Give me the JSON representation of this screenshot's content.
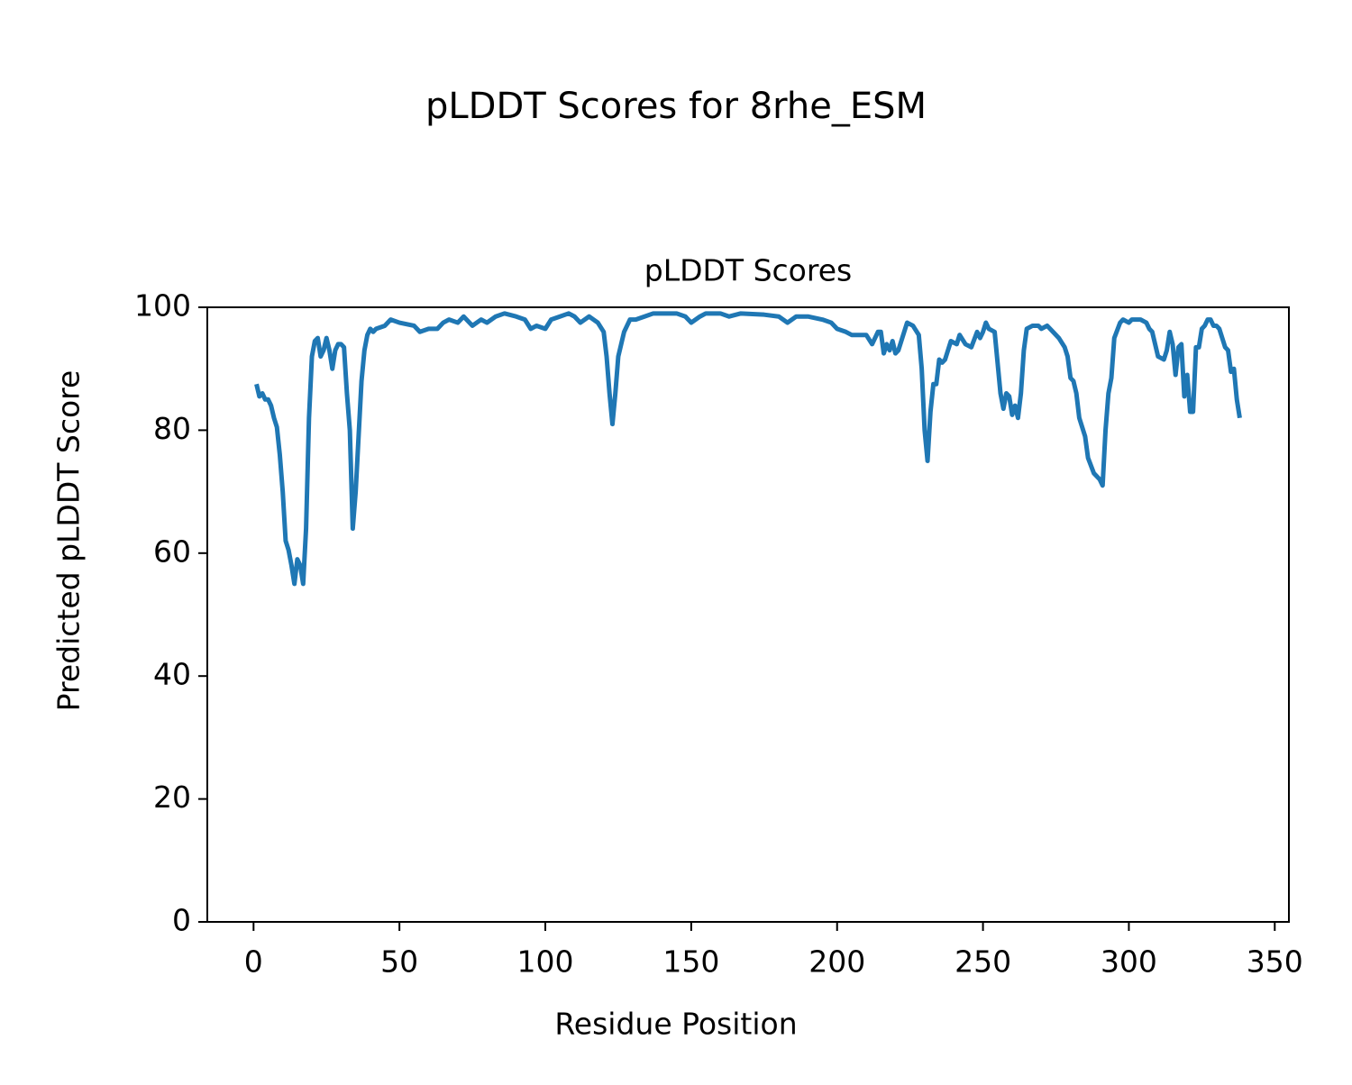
{
  "chart_data": {
    "type": "line",
    "suptitle": "pLDDT Scores for 8rhe_ESM",
    "title": "pLDDT Scores",
    "xlabel": "Residue Position",
    "ylabel": "Predicted pLDDT Score",
    "xlim": [
      -15.85,
      354.85
    ],
    "ylim": [
      0,
      100
    ],
    "xticks": [
      0,
      50,
      100,
      150,
      200,
      250,
      300,
      350
    ],
    "yticks": [
      0,
      20,
      40,
      60,
      80,
      100
    ],
    "series": [
      {
        "name": "pLDDT",
        "color": "#1f77b4",
        "x": [
          1,
          2,
          3,
          4,
          5,
          6,
          7,
          8,
          9,
          10,
          11,
          12,
          13,
          14,
          15,
          16,
          17,
          18,
          19,
          20,
          21,
          22,
          23,
          24,
          25,
          26,
          27,
          28,
          29,
          30,
          31,
          32,
          33,
          34,
          35,
          36,
          37,
          38,
          39,
          40,
          41,
          42,
          45,
          47,
          50,
          55,
          57,
          60,
          63,
          65,
          67,
          70,
          72,
          75,
          78,
          80,
          83,
          86,
          90,
          93,
          95,
          97,
          100,
          102,
          105,
          108,
          110,
          112,
          115,
          118,
          120,
          121,
          122,
          123,
          124,
          125,
          127,
          129,
          131,
          134,
          137,
          140,
          145,
          148,
          150,
          153,
          155,
          160,
          163,
          167,
          175,
          180,
          183,
          186,
          190,
          195,
          198,
          200,
          203,
          205,
          207,
          210,
          212,
          214,
          215,
          216,
          217,
          218,
          219,
          220,
          221,
          223,
          224,
          226,
          228,
          229,
          230,
          231,
          232,
          233,
          234,
          235,
          236,
          237,
          239,
          241,
          242,
          244,
          246,
          248,
          249,
          250,
          251,
          252,
          254,
          255,
          256,
          257,
          258,
          259,
          260,
          261,
          262,
          263,
          264,
          265,
          267,
          269,
          270,
          272,
          274,
          276,
          278,
          279,
          280,
          281,
          282,
          283,
          285,
          286,
          288,
          290,
          291,
          292,
          293,
          294,
          295,
          297,
          298,
          300,
          301,
          304,
          306,
          307,
          308,
          310,
          312,
          313,
          314,
          315,
          316,
          317,
          318,
          319,
          320,
          321,
          322,
          323,
          324,
          325,
          326,
          327,
          328,
          329,
          330,
          331,
          332,
          333,
          334,
          335,
          336,
          337,
          338
        ],
        "values": [
          87.5,
          85.5,
          86,
          85,
          85,
          84,
          82,
          80.5,
          76,
          70,
          62,
          60.5,
          58,
          55,
          59,
          58,
          55,
          64,
          82,
          92,
          94.5,
          95,
          92,
          93,
          95,
          93,
          90,
          93,
          94,
          94,
          93.5,
          86,
          80,
          64,
          70,
          79,
          88,
          93,
          95.5,
          96.5,
          96,
          96.5,
          97,
          98,
          97.5,
          97,
          96,
          96.5,
          96.5,
          97.5,
          98,
          97.5,
          98.5,
          97,
          98,
          97.5,
          98.5,
          99,
          98.5,
          98,
          96.5,
          97,
          96.5,
          98,
          98.5,
          99,
          98.5,
          97.5,
          98.5,
          97.5,
          96,
          92,
          86,
          81,
          86,
          92,
          96,
          98,
          98,
          98.5,
          99,
          99,
          99,
          98.5,
          97.5,
          98.5,
          99,
          99,
          98.5,
          99,
          98.8,
          98.5,
          97.5,
          98.5,
          98.5,
          98,
          97.5,
          96.5,
          96,
          95.5,
          95.5,
          95.5,
          94,
          96,
          96,
          92.5,
          94,
          93,
          94.5,
          92.5,
          93,
          96,
          97.5,
          97,
          95.5,
          90,
          80,
          75,
          83,
          87.5,
          87.5,
          91.5,
          91,
          91.5,
          94.5,
          94,
          95.5,
          94,
          93.5,
          96,
          95,
          96,
          97.5,
          96.5,
          96,
          91,
          86,
          83.5,
          86,
          85.5,
          82.5,
          84,
          82,
          86,
          93,
          96.5,
          97,
          97,
          96.5,
          97,
          96,
          95,
          93.5,
          92,
          88.5,
          88,
          86,
          82,
          79,
          75.5,
          73,
          72,
          71,
          80,
          86,
          88.5,
          95,
          97.5,
          98,
          97.5,
          98,
          98,
          97.5,
          96.5,
          96,
          92,
          91.5,
          93,
          96,
          94,
          89,
          93.5,
          94,
          85.5,
          89,
          83,
          83,
          93.5,
          93.5,
          96.5,
          97,
          98,
          98,
          97,
          97,
          96.5,
          95,
          93.5,
          93,
          89.5,
          90,
          85,
          82
        ]
      }
    ]
  }
}
